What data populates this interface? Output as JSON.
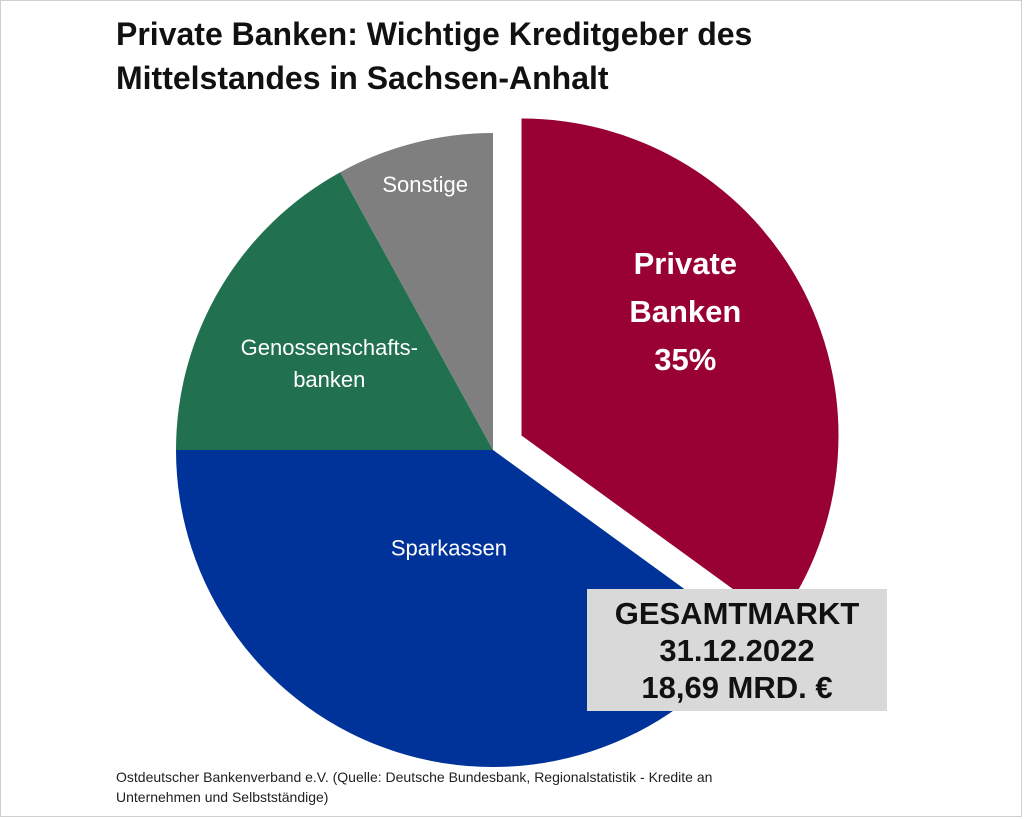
{
  "title": {
    "line1": "Private Banken: Wichtige Kreditgeber des",
    "line2": "Mittelstandes in Sachsen-Anhalt"
  },
  "chart_data": {
    "type": "pie",
    "slices": [
      {
        "key": "private",
        "label_lines": [
          "Private",
          "Banken",
          "35%"
        ],
        "value": 35,
        "color": "#990033",
        "exploded": true
      },
      {
        "key": "sparkassen",
        "label_lines": [
          "Sparkassen"
        ],
        "value": 40,
        "color": "#003399",
        "exploded": false
      },
      {
        "key": "genossenschaftsbanken",
        "label_lines": [
          "Genossenschafts-",
          "banken"
        ],
        "value": 17,
        "color": "#217150",
        "exploded": false
      },
      {
        "key": "sonstige",
        "label_lines": [
          "Sonstige"
        ],
        "value": 8,
        "color": "#7f7f7f",
        "exploded": false
      }
    ],
    "start": "12 o'clock",
    "direction": "clockwise"
  },
  "total_box": {
    "line1": "GESAMTMARKT",
    "line2": "31.12.2022",
    "line3": "18,69 MRD. €"
  },
  "footnote": {
    "line1": "Ostdeutscher Bankenverband e.V. (Quelle: Deutsche Bundesbank, Regionalstatistik - Kredite an",
    "line2": "Unternehmen und Selbstständige)"
  }
}
